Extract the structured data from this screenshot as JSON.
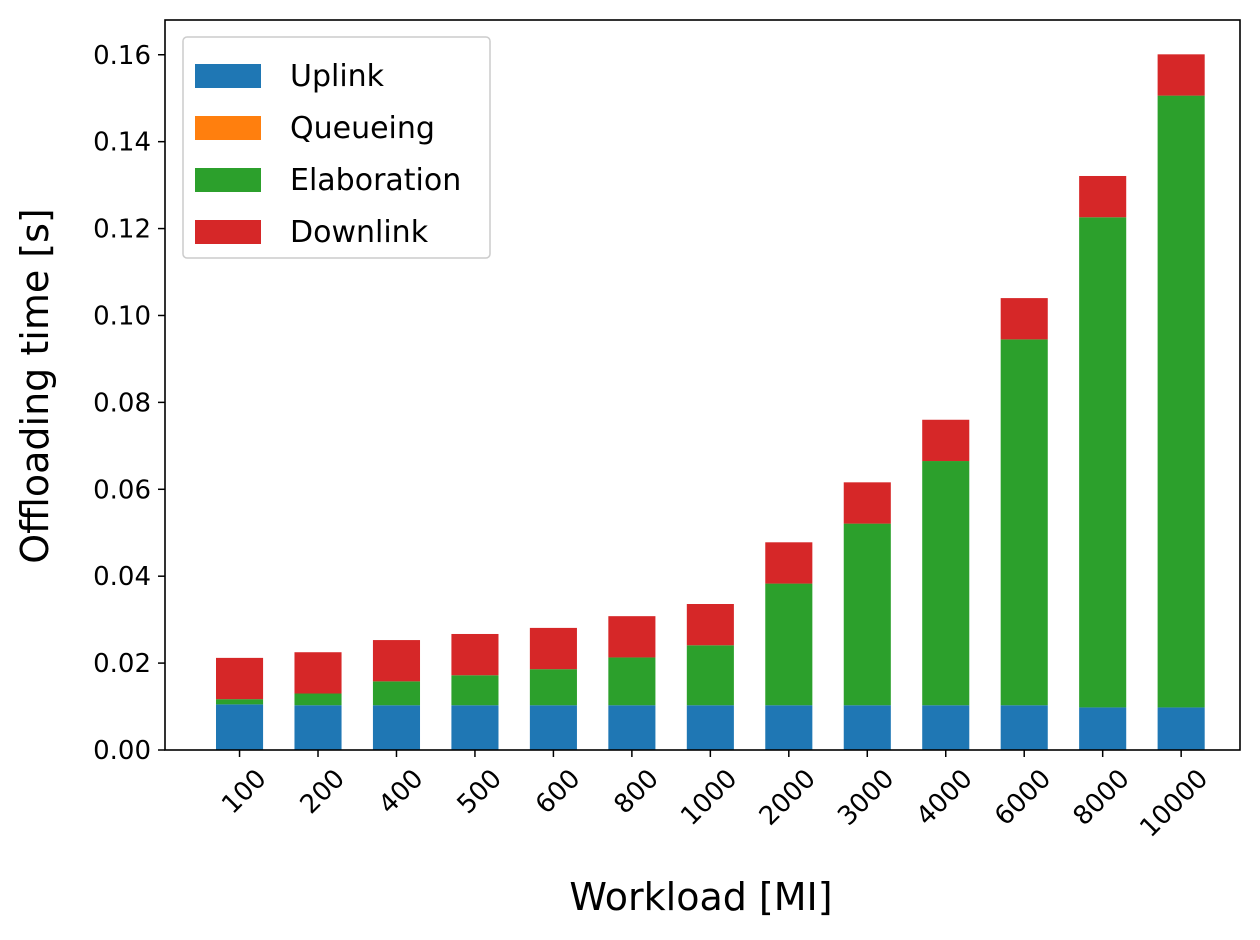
{
  "chart_data": {
    "type": "bar",
    "stacked": true,
    "title": "",
    "xlabel": "Workload [MI]",
    "ylabel": "Offloading time [s]",
    "ylim": [
      0,
      0.168
    ],
    "yticks": [
      "0.00",
      "0.02",
      "0.04",
      "0.06",
      "0.08",
      "0.10",
      "0.12",
      "0.14",
      "0.16"
    ],
    "categories": [
      "100",
      "200",
      "400",
      "500",
      "600",
      "800",
      "1000",
      "2000",
      "3000",
      "4000",
      "6000",
      "8000",
      "10000"
    ],
    "series": [
      {
        "name": "Uplink",
        "color": "#1f77b4",
        "values": [
          0.0105,
          0.0103,
          0.0103,
          0.0103,
          0.0103,
          0.0103,
          0.0103,
          0.0103,
          0.0103,
          0.0103,
          0.0103,
          0.0098,
          0.0098
        ]
      },
      {
        "name": "Queueing",
        "color": "#ff7f0e",
        "values": [
          0,
          0,
          0,
          0,
          0,
          0,
          0,
          0,
          0,
          0,
          0,
          0,
          0
        ]
      },
      {
        "name": "Elaboration",
        "color": "#2ca02c",
        "values": [
          0.0012,
          0.0027,
          0.0055,
          0.0069,
          0.0083,
          0.011,
          0.0138,
          0.028,
          0.0418,
          0.0562,
          0.0842,
          0.1128,
          0.1408
        ]
      },
      {
        "name": "Downlink",
        "color": "#d62728",
        "values": [
          0.0095,
          0.0095,
          0.0095,
          0.0095,
          0.0095,
          0.0095,
          0.0095,
          0.0095,
          0.0095,
          0.0095,
          0.0095,
          0.0095,
          0.0095
        ]
      }
    ],
    "legend_position": "top-left",
    "grid": false
  }
}
